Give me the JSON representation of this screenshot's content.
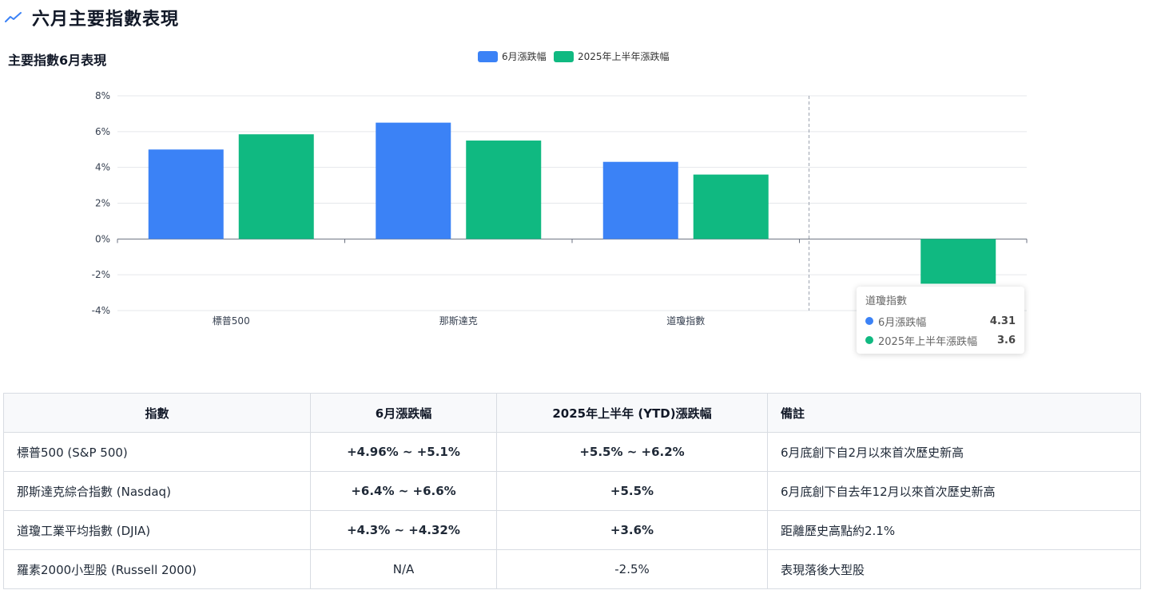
{
  "page": {
    "title": "六月主要指數表現",
    "title_icon": "trend-line-icon",
    "accent_color": "#3b82f6"
  },
  "chart_section": {
    "title": "主要指數6月表現"
  },
  "chart_data": {
    "type": "bar",
    "categories": [
      "標普500",
      "那斯達克",
      "道瓊指數",
      "羅素2000"
    ],
    "series": [
      {
        "name": "6月漲跌幅",
        "color": "#3b82f6",
        "values": [
          5.0,
          6.5,
          4.31,
          null
        ]
      },
      {
        "name": "2025年上半年漲跌幅",
        "color": "#10b981",
        "values": [
          5.85,
          5.5,
          3.6,
          -2.5
        ]
      }
    ],
    "y_tick_labels": [
      "8%",
      "6%",
      "4%",
      "2%",
      "0%",
      "-2%",
      "-4%"
    ],
    "y_ticks": [
      8,
      6,
      4,
      2,
      0,
      -2,
      -4
    ],
    "ylim": [
      -4,
      8
    ],
    "grid": true,
    "legend_position": "top-center",
    "hover_category_index": 3
  },
  "tooltip": {
    "title": "道瓊指數",
    "rows": [
      {
        "name": "6月漲跌幅",
        "value": "4.31",
        "color": "#3b82f6"
      },
      {
        "name": "2025年上半年漲跌幅",
        "value": "3.6",
        "color": "#10b981"
      }
    ]
  },
  "table": {
    "headers": [
      "指數",
      "6月漲跌幅",
      "2025年上半年 (YTD)漲跌幅",
      "備註"
    ],
    "rows": [
      {
        "name": "標普500 (S&P 500)",
        "june": "+4.96% ~ +5.1%",
        "june_tone": "pos",
        "ytd": "+5.5% ~ +6.2%",
        "ytd_tone": "pos",
        "note": "6月底創下自2月以來首次歷史新高"
      },
      {
        "name": "那斯達克綜合指數 (Nasdaq)",
        "june": "+6.4% ~ +6.6%",
        "june_tone": "pos",
        "ytd": "+5.5%",
        "ytd_tone": "pos",
        "note": "6月底創下自去年12月以來首次歷史新高"
      },
      {
        "name": "道瓊工業平均指數 (DJIA)",
        "june": "+4.3% ~ +4.32%",
        "june_tone": "pos",
        "ytd": "+3.6%",
        "ytd_tone": "pos",
        "note": "距離歷史高點約2.1%"
      },
      {
        "name": "羅素2000小型股 (Russell 2000)",
        "june": "N/A",
        "june_tone": "na",
        "ytd": "-2.5%",
        "ytd_tone": "neg",
        "note": "表現落後大型股"
      }
    ]
  }
}
